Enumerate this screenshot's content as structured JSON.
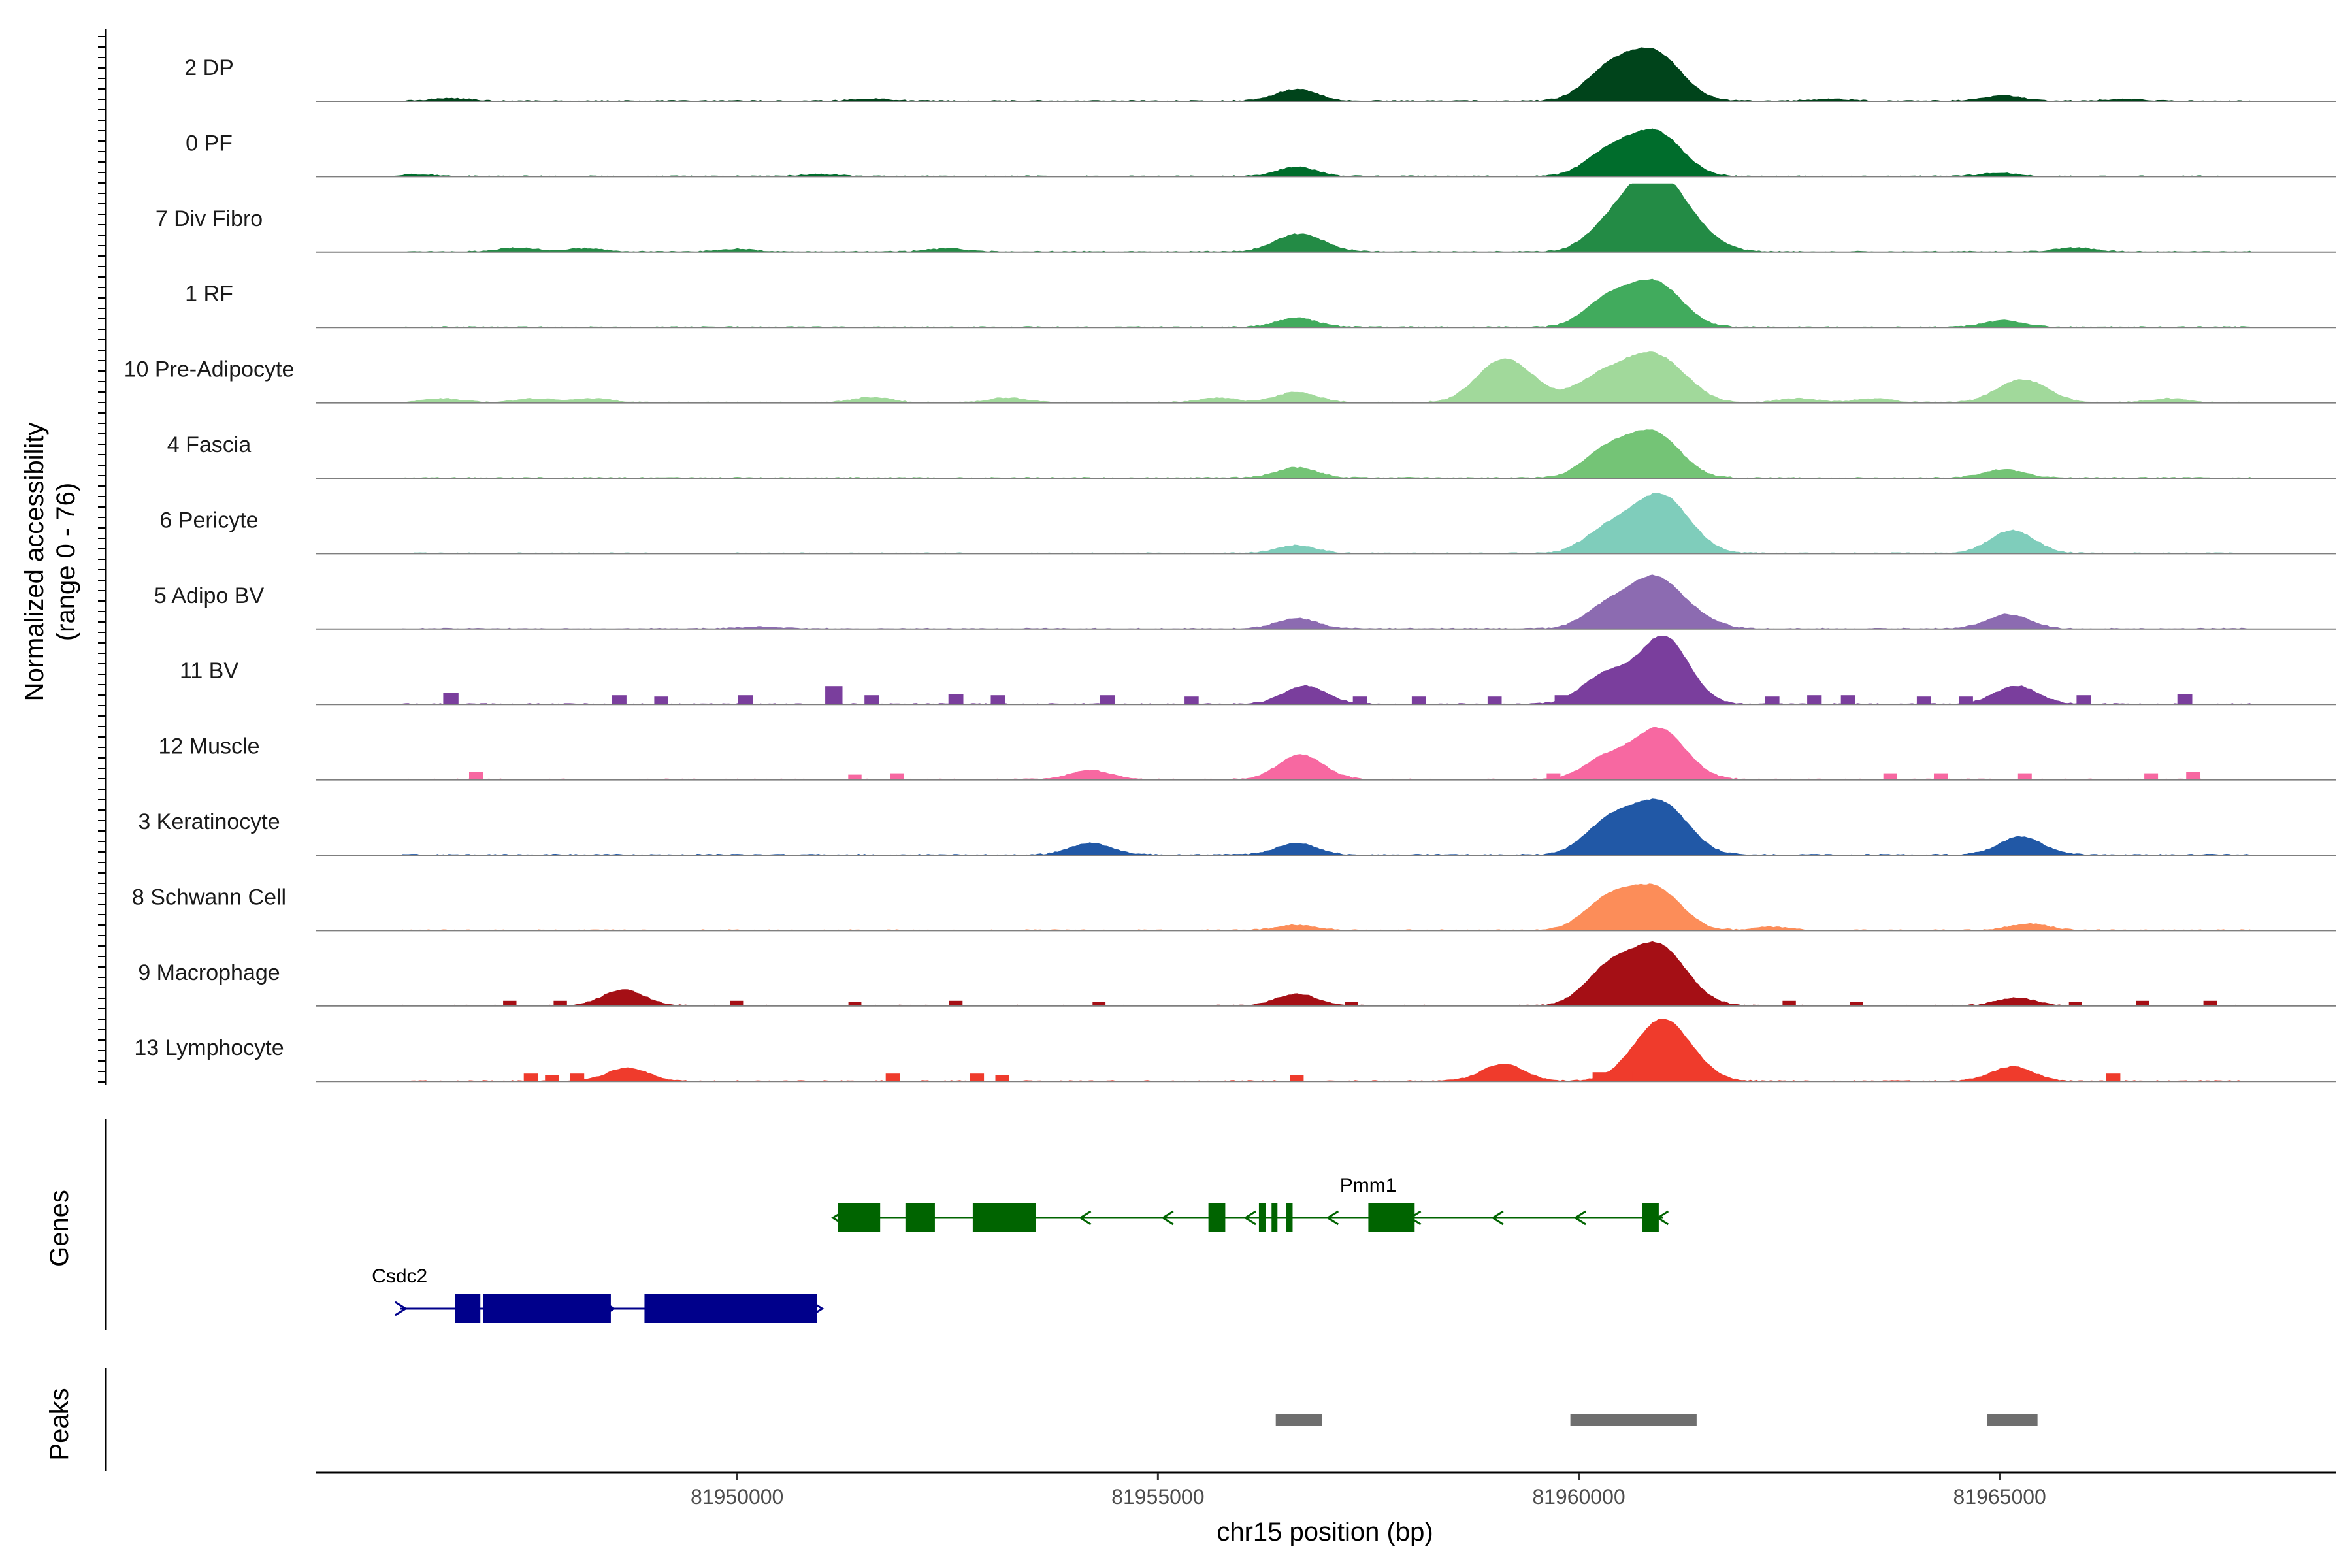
{
  "chart_data": {
    "type": "area",
    "xlabel": "chr15 position (bp)",
    "ylabel_line1": "Normalized accessibility",
    "ylabel_line2": "(range 0 - 76)",
    "y_range": [
      0,
      76
    ],
    "x_range": [
      81945000,
      81969000
    ],
    "x_ticks": [
      "81950000",
      "81955000",
      "81960000",
      "81965000"
    ],
    "x_tick_values": [
      81950000,
      81955000,
      81960000,
      81965000
    ],
    "tracks": [
      {
        "name": "2 DP",
        "color": "#00441B",
        "peaks": [
          [
            81946600,
            0.04
          ],
          [
            81951600,
            0.03
          ],
          [
            81956650,
            0.18
          ],
          [
            81960300,
            0.38
          ],
          [
            81960600,
            0.24
          ],
          [
            81960950,
            0.65
          ],
          [
            81963000,
            0.03
          ],
          [
            81965050,
            0.08
          ],
          [
            81966500,
            0.03
          ]
        ],
        "bars": []
      },
      {
        "name": "0 PF",
        "color": "#006D2C",
        "peaks": [
          [
            81946200,
            0.03
          ],
          [
            81951000,
            0.03
          ],
          [
            81956650,
            0.14
          ],
          [
            81960300,
            0.3
          ],
          [
            81960600,
            0.18
          ],
          [
            81960950,
            0.62
          ],
          [
            81965000,
            0.05
          ]
        ],
        "bars": []
      },
      {
        "name": "7 Div Fibro",
        "color": "#238B45",
        "peaks": [
          [
            81947400,
            0.06
          ],
          [
            81948200,
            0.05
          ],
          [
            81950000,
            0.04
          ],
          [
            81952500,
            0.05
          ],
          [
            81956600,
            0.22
          ],
          [
            81956900,
            0.1
          ],
          [
            81960300,
            0.28
          ],
          [
            81960700,
            0.42
          ],
          [
            81961000,
            1.0
          ],
          [
            81961600,
            0.06
          ],
          [
            81965900,
            0.06
          ]
        ],
        "bars": []
      },
      {
        "name": "1 RF",
        "color": "#41AB5D",
        "peaks": [
          [
            81956650,
            0.14
          ],
          [
            81960300,
            0.35
          ],
          [
            81960600,
            0.18
          ],
          [
            81960950,
            0.62
          ],
          [
            81965050,
            0.1
          ]
        ],
        "bars": []
      },
      {
        "name": "10 Pre-Adipocyte",
        "color": "#A1D99B",
        "peaks": [
          [
            81946500,
            0.06
          ],
          [
            81947600,
            0.06
          ],
          [
            81948300,
            0.06
          ],
          [
            81951600,
            0.08
          ],
          [
            81953200,
            0.07
          ],
          [
            81955700,
            0.07
          ],
          [
            81956650,
            0.16
          ],
          [
            81959050,
            0.58
          ],
          [
            81959400,
            0.2
          ],
          [
            81960000,
            0.12
          ],
          [
            81960350,
            0.38
          ],
          [
            81960700,
            0.2
          ],
          [
            81960950,
            0.55
          ],
          [
            81961300,
            0.12
          ],
          [
            81962600,
            0.06
          ],
          [
            81963500,
            0.06
          ],
          [
            81965150,
            0.24
          ],
          [
            81965450,
            0.18
          ],
          [
            81967000,
            0.06
          ]
        ],
        "bars": []
      },
      {
        "name": "4 Fascia",
        "color": "#74C476",
        "peaks": [
          [
            81956650,
            0.16
          ],
          [
            81960300,
            0.38
          ],
          [
            81960650,
            0.2
          ],
          [
            81960950,
            0.58
          ],
          [
            81965050,
            0.13
          ]
        ],
        "bars": []
      },
      {
        "name": "6 Pericyte",
        "color": "#7FCDBB",
        "peaks": [
          [
            81956650,
            0.12
          ],
          [
            81960300,
            0.32
          ],
          [
            81960650,
            0.14
          ],
          [
            81961000,
            0.85
          ],
          [
            81965150,
            0.35
          ]
        ],
        "bars": []
      },
      {
        "name": "5 Adipo BV",
        "color": "#8C6BB1",
        "peaks": [
          [
            81950300,
            0.03
          ],
          [
            81956650,
            0.16
          ],
          [
            81960300,
            0.3
          ],
          [
            81960650,
            0.14
          ],
          [
            81960950,
            0.72
          ],
          [
            81961500,
            0.08
          ],
          [
            81965100,
            0.22
          ]
        ],
        "bars": []
      },
      {
        "name": "11 BV",
        "color": "#7A3E9D",
        "peaks": [
          [
            81956750,
            0.28
          ],
          [
            81960300,
            0.42
          ],
          [
            81960950,
            0.72
          ],
          [
            81961100,
            0.35
          ],
          [
            81965200,
            0.28
          ]
        ],
        "bars": [
          [
            81946600,
            0.18
          ],
          [
            81948600,
            0.14
          ],
          [
            81949100,
            0.12
          ],
          [
            81950100,
            0.14
          ],
          [
            81951150,
            0.28
          ],
          [
            81951600,
            0.14
          ],
          [
            81952600,
            0.16
          ],
          [
            81953100,
            0.14
          ],
          [
            81954400,
            0.14
          ],
          [
            81955400,
            0.12
          ],
          [
            81957400,
            0.12
          ],
          [
            81958100,
            0.12
          ],
          [
            81959000,
            0.12
          ],
          [
            81959800,
            0.14
          ],
          [
            81962300,
            0.12
          ],
          [
            81962800,
            0.14
          ],
          [
            81963200,
            0.14
          ],
          [
            81964100,
            0.12
          ],
          [
            81964600,
            0.12
          ],
          [
            81966000,
            0.14
          ],
          [
            81967200,
            0.16
          ]
        ]
      },
      {
        "name": "12 Muscle",
        "color": "#F768A1",
        "peaks": [
          [
            81954200,
            0.14
          ],
          [
            81956700,
            0.38
          ],
          [
            81960300,
            0.3
          ],
          [
            81960950,
            0.78
          ]
        ],
        "bars": [
          [
            81946900,
            0.12
          ],
          [
            81951400,
            0.08
          ],
          [
            81951900,
            0.1
          ],
          [
            81959700,
            0.1
          ],
          [
            81960000,
            0.12
          ],
          [
            81963700,
            0.1
          ],
          [
            81964300,
            0.1
          ],
          [
            81965300,
            0.1
          ],
          [
            81966800,
            0.1
          ],
          [
            81967300,
            0.12
          ]
        ]
      },
      {
        "name": "3 Keratinocyte",
        "color": "#2158A6",
        "peaks": [
          [
            81954200,
            0.18
          ],
          [
            81956650,
            0.18
          ],
          [
            81960200,
            0.22
          ],
          [
            81960500,
            0.4
          ],
          [
            81961000,
            0.75
          ],
          [
            81965250,
            0.28
          ]
        ],
        "bars": []
      },
      {
        "name": "8 Schwann Cell",
        "color": "#FC8D59",
        "peaks": [
          [
            81956650,
            0.08
          ],
          [
            81960300,
            0.4
          ],
          [
            81960600,
            0.18
          ],
          [
            81960950,
            0.58
          ],
          [
            81962300,
            0.05
          ],
          [
            81965350,
            0.1
          ]
        ],
        "bars": []
      },
      {
        "name": "9 Macrophage",
        "color": "#A50F15",
        "peaks": [
          [
            81948650,
            0.24
          ],
          [
            81956650,
            0.18
          ],
          [
            81960350,
            0.52
          ],
          [
            81960950,
            0.9
          ],
          [
            81965200,
            0.12
          ]
        ],
        "bars": [
          [
            81947300,
            0.08
          ],
          [
            81947900,
            0.08
          ],
          [
            81950000,
            0.08
          ],
          [
            81951400,
            0.06
          ],
          [
            81952600,
            0.08
          ],
          [
            81954300,
            0.06
          ],
          [
            81957300,
            0.06
          ],
          [
            81959800,
            0.06
          ],
          [
            81962500,
            0.08
          ],
          [
            81963300,
            0.06
          ],
          [
            81965900,
            0.06
          ],
          [
            81966700,
            0.08
          ],
          [
            81967500,
            0.08
          ]
        ]
      },
      {
        "name": "13 Lymphocyte",
        "color": "#EF3B2C",
        "peaks": [
          [
            81948700,
            0.2
          ],
          [
            81959100,
            0.26
          ],
          [
            81961000,
            0.95
          ],
          [
            81965150,
            0.22
          ]
        ],
        "bars": [
          [
            81947550,
            0.12
          ],
          [
            81947800,
            0.1
          ],
          [
            81948100,
            0.12
          ],
          [
            81951850,
            0.12
          ],
          [
            81952850,
            0.12
          ],
          [
            81953150,
            0.1
          ],
          [
            81956650,
            0.1
          ],
          [
            81960250,
            0.14
          ],
          [
            81960550,
            0.16
          ],
          [
            81961600,
            0.1
          ],
          [
            81966350,
            0.12
          ]
        ]
      }
    ],
    "genes_title": "Genes",
    "genes": [
      {
        "name": "Pmm1",
        "color": "#006400",
        "strand": "-",
        "start": 81951200,
        "end": 81961000,
        "exons": [
          [
            81951200,
            81951700
          ],
          [
            81952000,
            81952350
          ],
          [
            81952800,
            81953550
          ],
          [
            81955600,
            81955800
          ],
          [
            81956200,
            81956280
          ],
          [
            81956350,
            81956420
          ],
          [
            81956520,
            81956600
          ],
          [
            81957500,
            81958050
          ],
          [
            81960750,
            81960950
          ]
        ]
      },
      {
        "name": "Csdc2",
        "color": "#00008B",
        "strand": "+",
        "start": 81946000,
        "end": 81950950,
        "exons": [
          [
            81946650,
            81946950
          ],
          [
            81946980,
            81948500
          ],
          [
            81948900,
            81950950
          ]
        ]
      }
    ],
    "peaks_title": "Peaks",
    "peak_regions": [
      [
        81956400,
        81956950
      ],
      [
        81959900,
        81961400
      ],
      [
        81964850,
        81965450
      ]
    ]
  }
}
